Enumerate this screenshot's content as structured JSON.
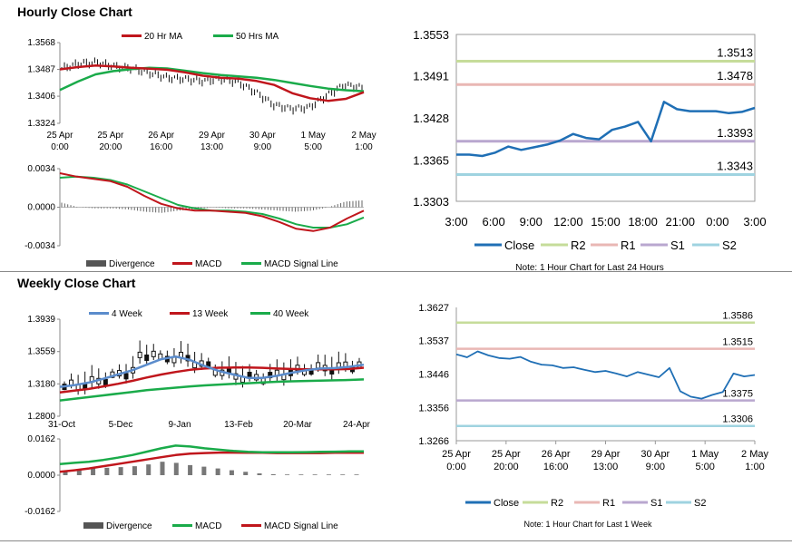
{
  "titles": {
    "hourly": "Hourly Close Chart",
    "weekly": "Weekly Close Chart"
  },
  "colors": {
    "ma20": "#c0161c",
    "ma50": "#1aab4a",
    "close": "#1f6fb5",
    "r2": "#c6dc9a",
    "r1": "#e9b7b4",
    "s1": "#b9a7cf",
    "s2": "#9fd3e0",
    "wk4": "#5b8ccc",
    "wk13": "#c0161c",
    "wk40": "#1aab4a",
    "divergence": "#555555",
    "macd_red": "#c0161c",
    "signal_green": "#1aab4a"
  },
  "chart_data": [
    {
      "id": "hourly_price",
      "type": "line",
      "legend": [
        "20 Hr MA",
        "50 Hrs MA"
      ],
      "yticks": [
        "1.3568",
        "1.3487",
        "1.3406",
        "1.3324"
      ],
      "ylim": [
        1.3324,
        1.3568
      ],
      "xticks": [
        [
          "25 Apr",
          "0:00"
        ],
        [
          "25 Apr",
          "20:00"
        ],
        [
          "26 Apr",
          "16:00"
        ],
        [
          "29 Apr",
          "13:00"
        ],
        [
          "30 Apr",
          "9:00"
        ],
        [
          "1 May",
          "5:00"
        ],
        [
          "2 May",
          "1:00"
        ]
      ],
      "series": [
        {
          "name": "20 Hr MA",
          "values": [
            1.3487,
            1.3494,
            1.3499,
            1.3496,
            1.3492,
            1.3489,
            1.3486,
            1.3478,
            1.3468,
            1.3462,
            1.3459,
            1.3452,
            1.344,
            1.3415,
            1.34,
            1.3392,
            1.3398,
            1.3418
          ]
        },
        {
          "name": "50 Hrs MA",
          "values": [
            1.3425,
            1.345,
            1.3472,
            1.3482,
            1.3488,
            1.3492,
            1.349,
            1.3483,
            1.3476,
            1.347,
            1.3466,
            1.3462,
            1.3455,
            1.3446,
            1.3437,
            1.3429,
            1.3424,
            1.3421
          ]
        },
        {
          "name": "Close",
          "values": [
            1.349,
            1.3505,
            1.3508,
            1.3496,
            1.349,
            1.3476,
            1.3462,
            1.3458,
            1.3452,
            1.3459,
            1.3448,
            1.3418,
            1.338,
            1.3368,
            1.3372,
            1.3408,
            1.344,
            1.3432
          ]
        }
      ]
    },
    {
      "id": "hourly_macd",
      "type": "line",
      "legend": [
        "Divergence",
        "MACD",
        "MACD Signal Line"
      ],
      "yticks": [
        "0.0034",
        "0.0000",
        "-0.0034"
      ],
      "ylim": [
        -0.0034,
        0.0034
      ],
      "series": [
        {
          "name": "MACD",
          "values": [
            0.003,
            0.0027,
            0.0025,
            0.0023,
            0.0018,
            0.001,
            0.0003,
            -0.0001,
            -0.0003,
            -0.0003,
            -0.0004,
            -0.0005,
            -0.0008,
            -0.0013,
            -0.0019,
            -0.0021,
            -0.0018,
            -0.001,
            -0.0003
          ]
        },
        {
          "name": "MACD Signal Line",
          "values": [
            0.0026,
            0.0027,
            0.0026,
            0.0024,
            0.002,
            0.0014,
            0.0008,
            0.0002,
            -0.0001,
            -0.0003,
            -0.0003,
            -0.0004,
            -0.0006,
            -0.001,
            -0.0015,
            -0.0018,
            -0.0018,
            -0.0015,
            -0.0009
          ]
        },
        {
          "name": "Divergence",
          "values": [
            0.0004,
            0.0,
            -0.0001,
            -0.0001,
            -0.0002,
            -0.0004,
            -0.0005,
            -0.0003,
            -0.0002,
            0.0,
            -0.0001,
            -0.0001,
            -0.0002,
            -0.0003,
            -0.0004,
            -0.0003,
            0.0,
            0.0005,
            0.0006
          ]
        }
      ]
    },
    {
      "id": "hourly_pivot",
      "type": "line",
      "legend": [
        "Close",
        "R2",
        "R1",
        "S1",
        "S2"
      ],
      "note": "Note: 1 Hour Chart for Last 24 Hours",
      "yticks": [
        "1.3553",
        "1.3491",
        "1.3428",
        "1.3365",
        "1.3303"
      ],
      "ylim": [
        1.3303,
        1.3553
      ],
      "xticks": [
        "3:00",
        "6:00",
        "9:00",
        "12:00",
        "15:00",
        "18:00",
        "21:00",
        "0:00",
        "3:00"
      ],
      "levels": {
        "R2": "1.3513",
        "R1": "1.3478",
        "S1": "1.3393",
        "S2": "1.3343"
      },
      "series": [
        {
          "name": "Close",
          "values": [
            1.3373,
            1.3373,
            1.3371,
            1.3376,
            1.3385,
            1.338,
            1.3384,
            1.3388,
            1.3394,
            1.3404,
            1.3398,
            1.3396,
            1.341,
            1.3415,
            1.3422,
            1.3393,
            1.3452,
            1.3441,
            1.3438,
            1.3438,
            1.3438,
            1.3435,
            1.3437,
            1.3443
          ]
        }
      ]
    },
    {
      "id": "weekly_price",
      "type": "line",
      "legend": [
        "4 Week",
        "13 Week",
        "40 Week"
      ],
      "yticks": [
        "1.3939",
        "1.3559",
        "1.3180",
        "1.2800"
      ],
      "ylim": [
        1.28,
        1.3939
      ],
      "xticks": [
        "31-Oct",
        "5-Dec",
        "9-Jan",
        "13-Feb",
        "20-Mar",
        "24-Apr"
      ],
      "series": [
        {
          "name": "4 Week",
          "values": [
            1.3145,
            1.3165,
            1.3195,
            1.324,
            1.329,
            1.334,
            1.3405,
            1.347,
            1.35,
            1.346,
            1.339,
            1.333,
            1.329,
            1.325,
            1.325,
            1.3275,
            1.331,
            1.334,
            1.336,
            1.3365,
            1.338,
            1.3405
          ]
        },
        {
          "name": "13 Week",
          "values": [
            1.308,
            1.31,
            1.312,
            1.315,
            1.318,
            1.3215,
            1.3255,
            1.329,
            1.332,
            1.3345,
            1.336,
            1.337,
            1.3372,
            1.3372,
            1.3368,
            1.336,
            1.3355,
            1.335,
            1.335,
            1.335,
            1.3355,
            1.337
          ]
        },
        {
          "name": "40 Week",
          "values": [
            1.2985,
            1.3005,
            1.3025,
            1.3045,
            1.3065,
            1.3085,
            1.3105,
            1.312,
            1.3135,
            1.315,
            1.3162,
            1.3172,
            1.318,
            1.3188,
            1.3196,
            1.3204,
            1.321,
            1.3214,
            1.3218,
            1.3222,
            1.3226,
            1.3232
          ]
        }
      ]
    },
    {
      "id": "weekly_macd",
      "type": "line",
      "legend": [
        "Divergence",
        "MACD",
        "MACD Signal Line"
      ],
      "yticks": [
        "0.0162",
        "0.0000",
        "-0.0162"
      ],
      "ylim": [
        -0.0162,
        0.0162
      ],
      "series": [
        {
          "name": "MACD",
          "values": [
            0.005,
            0.0055,
            0.006,
            0.0068,
            0.0078,
            0.009,
            0.0105,
            0.012,
            0.0132,
            0.0128,
            0.012,
            0.0114,
            0.0108,
            0.0104,
            0.0102,
            0.0102,
            0.0102,
            0.0103,
            0.0104,
            0.0105,
            0.0106,
            0.0106
          ]
        },
        {
          "name": "MACD Signal Line",
          "values": [
            0.0015,
            0.0022,
            0.003,
            0.004,
            0.005,
            0.006,
            0.007,
            0.008,
            0.009,
            0.0096,
            0.0099,
            0.0101,
            0.0101,
            0.01,
            0.01,
            0.0099,
            0.0099,
            0.0099,
            0.0099,
            0.01,
            0.01,
            0.01
          ]
        },
        {
          "name": "Divergence",
          "values": [
            0.002,
            0.0026,
            0.003,
            0.0033,
            0.0036,
            0.004,
            0.0048,
            0.006,
            0.0055,
            0.0045,
            0.0038,
            0.003,
            0.0022,
            0.0015,
            0.0008,
            0.0004,
            0.0003,
            0.0003,
            0.0003,
            0.0003,
            0.0003,
            0.0003
          ]
        }
      ]
    },
    {
      "id": "weekly_pivot",
      "type": "line",
      "legend": [
        "Close",
        "R2",
        "R1",
        "S1",
        "S2"
      ],
      "note": "Note: 1 Hour Chart for Last 1 Week",
      "yticks": [
        "1.3627",
        "1.3537",
        "1.3446",
        "1.3356",
        "1.3266"
      ],
      "ylim": [
        1.3266,
        1.3627
      ],
      "xticks": [
        [
          "25 Apr",
          "0:00"
        ],
        [
          "25 Apr",
          "20:00"
        ],
        [
          "26 Apr",
          "16:00"
        ],
        [
          "29 Apr",
          "13:00"
        ],
        [
          "30 Apr",
          "9:00"
        ],
        [
          "1 May",
          "5:00"
        ],
        [
          "2 May",
          "1:00"
        ]
      ],
      "levels": {
        "R2": "1.3586",
        "R1": "1.3515",
        "S1": "1.3375",
        "S2": "1.3306"
      },
      "series": [
        {
          "name": "Close",
          "values": [
            1.35,
            1.3492,
            1.3508,
            1.3497,
            1.349,
            1.3488,
            1.3493,
            1.348,
            1.3472,
            1.347,
            1.3463,
            1.3465,
            1.3458,
            1.3452,
            1.3455,
            1.3448,
            1.344,
            1.3452,
            1.3445,
            1.3438,
            1.3463,
            1.34,
            1.3385,
            1.338,
            1.339,
            1.3398,
            1.3448,
            1.344,
            1.3444
          ]
        }
      ]
    }
  ]
}
